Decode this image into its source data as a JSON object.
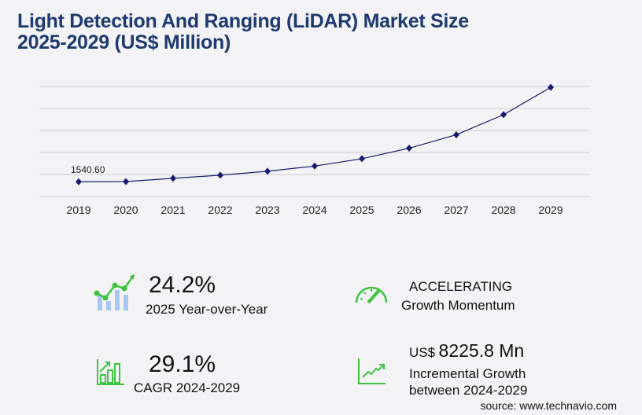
{
  "title_line1": "Light Detection And Ranging (LiDAR) Market Size",
  "title_line2": "2025-2029 (US$ Million)",
  "chart_data": {
    "type": "line",
    "categories": [
      "2019",
      "2020",
      "2021",
      "2022",
      "2023",
      "2024",
      "2025",
      "2026",
      "2027",
      "2028",
      "2029"
    ],
    "values": [
      1540.6,
      1560,
      1900,
      2230,
      2640,
      3180,
      3950,
      5050,
      6450,
      8550,
      11406
    ],
    "data_labels": {
      "2019": "1540.60"
    },
    "ylim": [
      0,
      11500
    ],
    "grid": true,
    "line_color": "#1a1a6e"
  },
  "stats": {
    "yoy_value": "24.2%",
    "yoy_label": "2025 Year-over-Year",
    "momentum_value": "ACCELERATING",
    "momentum_label": "Growth Momentum",
    "cagr_value": "29.1%",
    "cagr_label": "CAGR 2024-2029",
    "increment_prefix": "US$",
    "increment_value": "8225.8 Mn",
    "increment_label1": "Incremental Growth",
    "increment_label2": "between 2024-2029"
  },
  "source": "source: www.technavio.com",
  "accent_green": "#3ec43e"
}
